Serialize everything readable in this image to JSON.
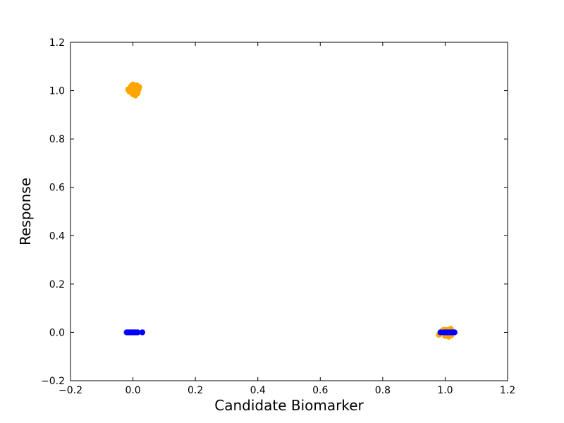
{
  "chart_data": {
    "type": "scatter",
    "title": "",
    "xlabel": "Candidate Biomarker",
    "ylabel": "Response",
    "xlim": [
      -0.2,
      1.2
    ],
    "ylim": [
      -0.2,
      1.2
    ],
    "xticks": [
      -0.2,
      0.0,
      0.2,
      0.4,
      0.6,
      0.8,
      1.0,
      1.2
    ],
    "yticks": [
      -0.2,
      0.0,
      0.2,
      0.4,
      0.6,
      0.8,
      1.0,
      1.2
    ],
    "xtick_labels": [
      "−0.2",
      "0.0",
      "0.2",
      "0.4",
      "0.6",
      "0.8",
      "1.0",
      "1.2"
    ],
    "ytick_labels": [
      "−0.2",
      "0.0",
      "0.2",
      "0.4",
      "0.6",
      "0.8",
      "1.0",
      "1.2"
    ],
    "grid": false,
    "legend": "none",
    "series": [
      {
        "color": "#ffa500",
        "points": [
          [
            -0.015,
            1.005
          ],
          [
            -0.01,
            0.995
          ],
          [
            -0.005,
            1.02
          ],
          [
            0.0,
            0.985
          ],
          [
            0.005,
            1.01
          ],
          [
            0.01,
            1.0
          ],
          [
            0.015,
            0.99
          ],
          [
            0.02,
            1.015
          ],
          [
            0.0,
            1.025
          ],
          [
            0.008,
            0.98
          ],
          [
            -0.008,
            1.012
          ],
          [
            0.018,
            1.005
          ],
          [
            0.003,
            0.993
          ],
          [
            -0.012,
            0.998
          ],
          [
            0.012,
            1.022
          ],
          [
            0.98,
            -0.01
          ],
          [
            0.99,
            0.005
          ],
          [
            1.0,
            -0.015
          ],
          [
            1.005,
            0.01
          ],
          [
            1.01,
            -0.005
          ],
          [
            1.015,
            0.012
          ],
          [
            1.02,
            -0.012
          ],
          [
            1.025,
            0.003
          ],
          [
            0.995,
            0.01
          ],
          [
            1.008,
            -0.008
          ],
          [
            1.018,
            0.015
          ],
          [
            0.988,
            -0.004
          ],
          [
            1.012,
            -0.018
          ],
          [
            1.002,
            0.002
          ]
        ]
      },
      {
        "color": "#0000ff",
        "points": [
          [
            -0.02,
            0.0
          ],
          [
            -0.015,
            0.0
          ],
          [
            -0.01,
            0.0
          ],
          [
            -0.005,
            0.0
          ],
          [
            0.0,
            0.0
          ],
          [
            0.005,
            0.0
          ],
          [
            0.01,
            0.0
          ],
          [
            0.015,
            0.0
          ],
          [
            0.03,
            0.0
          ],
          [
            0.985,
            0.0
          ],
          [
            0.995,
            0.0
          ],
          [
            1.0,
            0.0
          ],
          [
            1.005,
            0.0
          ],
          [
            1.01,
            0.0
          ],
          [
            1.015,
            0.0
          ],
          [
            1.02,
            0.0
          ],
          [
            1.025,
            0.0
          ],
          [
            1.03,
            0.0
          ]
        ]
      }
    ]
  }
}
